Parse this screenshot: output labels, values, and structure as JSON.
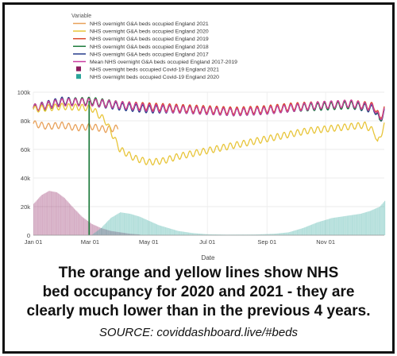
{
  "caption": {
    "line1": "The orange and yellow lines show NHS",
    "line2": "bed occupancy for 2020 and 2021 - they are",
    "line3": "clearly much lower than in the previous 4 years."
  },
  "source": "SOURCE: coviddashboard.live/#beds",
  "chart_data": {
    "type": "line",
    "legend_title": "Variable",
    "legend_position": "top",
    "xlabel": "Date",
    "ylabel": "",
    "x_ticks": [
      "Jan 01",
      "Mar 01",
      "May 01",
      "Jul 01",
      "Sep 01",
      "Nov 01"
    ],
    "y_ticks": [
      "0",
      "20k",
      "40k",
      "60k",
      "80k",
      "100k"
    ],
    "ylim": [
      0,
      100000
    ],
    "x_domain_days": [
      0,
      365
    ],
    "grid": true,
    "series": [
      {
        "name": "NHS overnight G&A beds occupied England 2021",
        "color": "#e8a15a",
        "kind": "line",
        "points": [
          [
            0,
            78000
          ],
          [
            15,
            76000
          ],
          [
            30,
            77000
          ],
          [
            45,
            75000
          ],
          [
            60,
            76000
          ],
          [
            75,
            74000
          ],
          [
            88,
            75000
          ]
        ]
      },
      {
        "name": "NHS overnight G&A beds occupied England 2020",
        "color": "#e8c53a",
        "kind": "line",
        "points": [
          [
            0,
            88000
          ],
          [
            30,
            90000
          ],
          [
            60,
            89000
          ],
          [
            75,
            80000
          ],
          [
            90,
            60000
          ],
          [
            105,
            54000
          ],
          [
            120,
            51000
          ],
          [
            135,
            52000
          ],
          [
            150,
            55000
          ],
          [
            165,
            57000
          ],
          [
            180,
            59000
          ],
          [
            195,
            61000
          ],
          [
            210,
            63000
          ],
          [
            225,
            65000
          ],
          [
            240,
            67000
          ],
          [
            255,
            69000
          ],
          [
            270,
            71000
          ],
          [
            285,
            73000
          ],
          [
            300,
            74000
          ],
          [
            315,
            75000
          ],
          [
            330,
            76000
          ],
          [
            345,
            77000
          ],
          [
            355,
            72000
          ],
          [
            358,
            64000
          ],
          [
            365,
            77000
          ]
        ]
      },
      {
        "name": "NHS overnight G&A beds occupied England 2019",
        "color": "#d9472b",
        "kind": "line",
        "points": [
          [
            0,
            89000
          ],
          [
            30,
            93000
          ],
          [
            60,
            93000
          ],
          [
            90,
            91000
          ],
          [
            120,
            90000
          ],
          [
            150,
            89000
          ],
          [
            180,
            88000
          ],
          [
            210,
            87000
          ],
          [
            240,
            88000
          ],
          [
            270,
            90000
          ],
          [
            300,
            91000
          ],
          [
            330,
            92000
          ],
          [
            355,
            90000
          ],
          [
            360,
            82000
          ],
          [
            365,
            88000
          ]
        ]
      },
      {
        "name": "NHS overnight G&A beds occupied England 2018",
        "color": "#1a7a3a",
        "kind": "line",
        "points": [
          [
            0,
            88000
          ],
          [
            30,
            93000
          ],
          [
            60,
            94000
          ],
          [
            90,
            91000
          ],
          [
            120,
            89000
          ],
          [
            150,
            88000
          ],
          [
            180,
            87000
          ],
          [
            210,
            86000
          ],
          [
            240,
            87000
          ],
          [
            270,
            89000
          ],
          [
            300,
            90000
          ],
          [
            330,
            91000
          ],
          [
            355,
            89000
          ],
          [
            360,
            80000
          ],
          [
            365,
            87000
          ]
        ]
      },
      {
        "name": "NHS overnight G&A beds occupied England 2017",
        "color": "#253c8c",
        "kind": "line",
        "points": [
          [
            0,
            89000
          ],
          [
            30,
            94000
          ],
          [
            60,
            93000
          ],
          [
            90,
            90000
          ],
          [
            120,
            88000
          ],
          [
            150,
            88000
          ],
          [
            180,
            87000
          ],
          [
            210,
            86000
          ],
          [
            240,
            87000
          ],
          [
            270,
            89000
          ],
          [
            300,
            90000
          ],
          [
            330,
            91000
          ],
          [
            355,
            88000
          ],
          [
            360,
            80000
          ],
          [
            365,
            86000
          ]
        ]
      },
      {
        "name": "Mean NHS overnight G&A beds occupied England 2017-2019",
        "color": "#c93ea0",
        "kind": "line",
        "points": [
          [
            0,
            89000
          ],
          [
            30,
            93000
          ],
          [
            60,
            93000
          ],
          [
            90,
            91000
          ],
          [
            120,
            89000
          ],
          [
            150,
            88000
          ],
          [
            180,
            87000
          ],
          [
            210,
            86000
          ],
          [
            240,
            87000
          ],
          [
            270,
            89000
          ],
          [
            300,
            91000
          ],
          [
            330,
            92000
          ],
          [
            355,
            89000
          ],
          [
            360,
            81000
          ],
          [
            365,
            87000
          ]
        ]
      },
      {
        "name": "NHS overnight beds occupied Covid-19 England 2021",
        "color": "#8b1a5c",
        "kind": "area",
        "points": [
          [
            0,
            22000
          ],
          [
            8,
            28000
          ],
          [
            16,
            31000
          ],
          [
            24,
            30000
          ],
          [
            32,
            26000
          ],
          [
            40,
            20000
          ],
          [
            50,
            13000
          ],
          [
            60,
            8000
          ],
          [
            70,
            5000
          ],
          [
            80,
            3000
          ],
          [
            90,
            2000
          ],
          [
            100,
            1000
          ],
          [
            110,
            500
          ]
        ]
      },
      {
        "name": "NHS overnight beds occupied Covid-19 England 2020",
        "color": "#2aa59a",
        "kind": "area",
        "points": [
          [
            60,
            0
          ],
          [
            70,
            5000
          ],
          [
            80,
            12000
          ],
          [
            90,
            16000
          ],
          [
            100,
            15000
          ],
          [
            110,
            13000
          ],
          [
            120,
            10000
          ],
          [
            130,
            7000
          ],
          [
            140,
            5000
          ],
          [
            150,
            3000
          ],
          [
            165,
            1500
          ],
          [
            180,
            700
          ],
          [
            200,
            400
          ],
          [
            230,
            500
          ],
          [
            250,
            1000
          ],
          [
            265,
            2000
          ],
          [
            280,
            5000
          ],
          [
            295,
            9000
          ],
          [
            310,
            12000
          ],
          [
            320,
            13000
          ],
          [
            330,
            14000
          ],
          [
            340,
            15000
          ],
          [
            350,
            17000
          ],
          [
            360,
            20000
          ],
          [
            365,
            24000
          ]
        ]
      }
    ]
  }
}
